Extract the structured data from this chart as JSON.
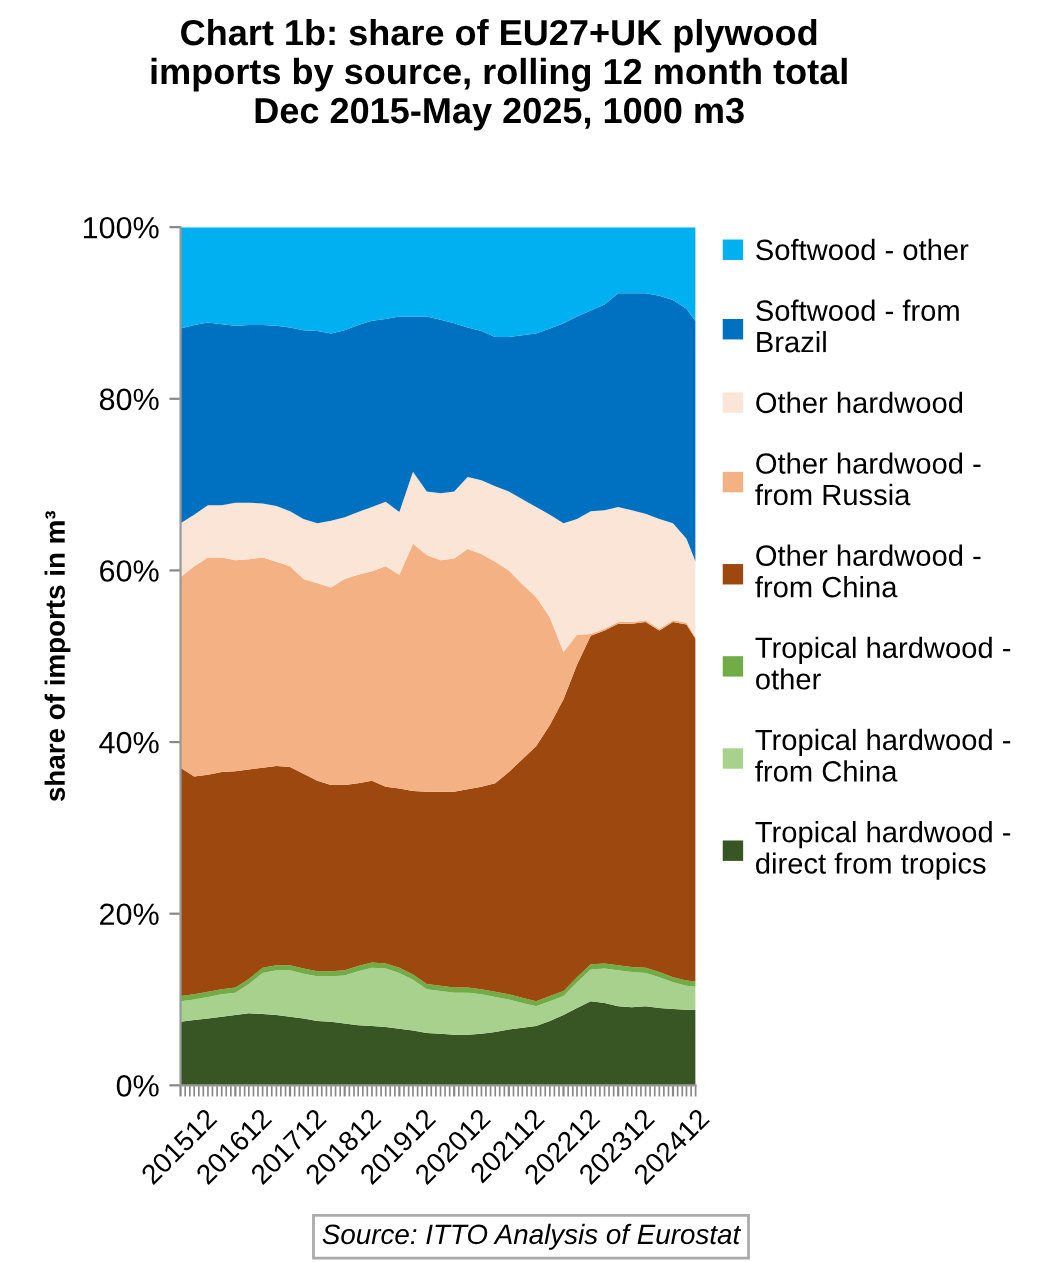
{
  "chart_data": {
    "type": "area",
    "stacked": true,
    "title": "Chart 1b: share of EU27+UK plywood\nimports by source, rolling 12 month total\nDec 2015-May 2025, 1000 m3",
    "ylabel": "share of imports in m³",
    "annotations": [
      "Source: ITTO Analysis of Eurostat"
    ],
    "x": [
      "2015-12",
      "2016-03",
      "2016-06",
      "2016-09",
      "2016-12",
      "2017-03",
      "2017-06",
      "2017-09",
      "2017-12",
      "2018-03",
      "2018-06",
      "2018-09",
      "2018-12",
      "2019-03",
      "2019-06",
      "2019-09",
      "2019-12",
      "2020-03",
      "2020-06",
      "2020-09",
      "2020-12",
      "2021-03",
      "2021-06",
      "2021-09",
      "2021-12",
      "2022-03",
      "2022-06",
      "2022-09",
      "2022-12",
      "2023-03",
      "2023-06",
      "2023-09",
      "2023-12",
      "2024-03",
      "2024-06",
      "2024-09",
      "2024-12",
      "2025-03",
      "2025-05"
    ],
    "series": [
      {
        "name": "Tropical hardwood - direct from tropics",
        "color": "#375623",
        "values": [
          7.4,
          7.6,
          7.8,
          8.0,
          8.2,
          8.4,
          8.3,
          8.2,
          8.0,
          7.8,
          7.5,
          7.4,
          7.2,
          7.0,
          6.9,
          6.8,
          6.6,
          6.4,
          6.1,
          6.0,
          5.9,
          5.9,
          6.0,
          6.2,
          6.5,
          6.7,
          6.9,
          7.5,
          8.2,
          9.0,
          9.8,
          9.6,
          9.2,
          9.1,
          9.2,
          9.0,
          8.9,
          8.8,
          8.8
        ]
      },
      {
        "name": "Tropical hardwood - from China",
        "color": "#a9d18e",
        "values": [
          2.4,
          2.4,
          2.5,
          2.6,
          2.6,
          3.4,
          4.8,
          5.2,
          5.4,
          5.2,
          5.2,
          5.3,
          5.6,
          6.3,
          6.8,
          6.8,
          6.5,
          5.9,
          5.1,
          5.0,
          4.9,
          4.9,
          4.6,
          4.1,
          3.5,
          2.9,
          2.3,
          2.3,
          2.2,
          3.0,
          3.7,
          4.0,
          4.2,
          4.1,
          3.9,
          3.6,
          3.1,
          2.8,
          2.7
        ]
      },
      {
        "name": "Tropical hardwood - other",
        "color": "#70ad47",
        "values": [
          0.6,
          0.6,
          0.6,
          0.6,
          0.6,
          0.6,
          0.6,
          0.6,
          0.6,
          0.6,
          0.6,
          0.6,
          0.6,
          0.6,
          0.6,
          0.6,
          0.6,
          0.6,
          0.6,
          0.6,
          0.6,
          0.6,
          0.6,
          0.6,
          0.6,
          0.6,
          0.6,
          0.6,
          0.6,
          0.6,
          0.6,
          0.6,
          0.6,
          0.6,
          0.6,
          0.6,
          0.6,
          0.6,
          0.6
        ]
      },
      {
        "name": "Other hardwood - from China",
        "color": "#9c480e",
        "values": [
          26.6,
          25.4,
          25.3,
          25.3,
          25.2,
          24.4,
          23.3,
          23.2,
          23.1,
          22.7,
          22.2,
          21.7,
          21.6,
          21.3,
          21.2,
          20.6,
          20.9,
          21.4,
          22.4,
          22.6,
          22.8,
          23.1,
          23.6,
          24.3,
          25.9,
          27.8,
          29.7,
          31.6,
          34.0,
          36.4,
          38.3,
          38.8,
          39.8,
          40.0,
          40.3,
          39.8,
          41.4,
          41.5,
          39.9
        ]
      },
      {
        "name": "Other hardwood - from Russia",
        "color": "#f4b183",
        "values": [
          22.2,
          24.5,
          25.3,
          25.0,
          24.6,
          24.5,
          24.5,
          23.8,
          23.4,
          22.7,
          23.0,
          23.0,
          24.0,
          24.3,
          24.4,
          25.7,
          24.9,
          28.8,
          27.6,
          27.0,
          27.2,
          28.0,
          27.1,
          25.8,
          23.5,
          20.4,
          17.4,
          12.5,
          5.5,
          3.5,
          0.2,
          0.2,
          0.2,
          0.2,
          0.2,
          0.2,
          0.2,
          0.2,
          0.2
        ]
      },
      {
        "name": "Other hardwood",
        "color": "#fbe5d6",
        "values": [
          6.3,
          6.0,
          6.1,
          6.1,
          6.7,
          6.6,
          6.3,
          6.5,
          6.4,
          7.0,
          7.0,
          7.8,
          7.2,
          7.3,
          7.5,
          7.5,
          7.3,
          8.4,
          7.4,
          7.8,
          7.8,
          8.4,
          8.6,
          8.8,
          9.2,
          9.9,
          10.5,
          12.0,
          15.0,
          13.5,
          14.3,
          13.8,
          13.4,
          13.0,
          12.4,
          12.8,
          11.3,
          9.8,
          8.8
        ]
      },
      {
        "name": "Softwood - from Brazil",
        "color": "#0070c0",
        "values": [
          22.7,
          22.1,
          21.3,
          21.1,
          20.6,
          20.7,
          20.8,
          21.0,
          21.4,
          22.0,
          22.4,
          21.8,
          21.8,
          21.8,
          21.7,
          21.3,
          22.8,
          18.1,
          20.4,
          20.2,
          19.6,
          17.4,
          17.4,
          17.4,
          18.0,
          19.1,
          20.2,
          21.7,
          23.3,
          23.6,
          23.4,
          24.0,
          24.9,
          25.3,
          25.7,
          26.0,
          26.0,
          26.8,
          28.0
        ]
      },
      {
        "name": "Softwood - other",
        "color": "#00b0f0",
        "values": [
          11.8,
          11.4,
          11.1,
          11.3,
          11.5,
          11.4,
          11.4,
          11.5,
          11.7,
          12.0,
          12.1,
          12.4,
          12.0,
          11.4,
          10.9,
          10.7,
          10.4,
          10.4,
          10.4,
          10.8,
          11.2,
          11.7,
          12.1,
          12.8,
          12.8,
          12.6,
          12.4,
          11.8,
          11.2,
          10.4,
          9.7,
          9.0,
          7.7,
          7.7,
          7.7,
          8.0,
          8.5,
          9.5,
          11.0
        ]
      }
    ],
    "xlim": [
      "2015-12",
      "2025-05"
    ],
    "xticks": [
      {
        "value": "2015-12",
        "label": "201512"
      },
      {
        "value": "2016-12",
        "label": "201612"
      },
      {
        "value": "2017-12",
        "label": "201712"
      },
      {
        "value": "2018-12",
        "label": "201812"
      },
      {
        "value": "2019-12",
        "label": "201912"
      },
      {
        "value": "2020-12",
        "label": "202012"
      },
      {
        "value": "2021-12",
        "label": "202112"
      },
      {
        "value": "2022-12",
        "label": "202212"
      },
      {
        "value": "2023-12",
        "label": "202312"
      },
      {
        "value": "2024-12",
        "label": "202412"
      }
    ],
    "ylim": [
      0,
      100
    ],
    "yticks": [
      {
        "value": 0,
        "label": "0%"
      },
      {
        "value": 20,
        "label": "20%"
      },
      {
        "value": 40,
        "label": "40%"
      },
      {
        "value": 60,
        "label": "60%"
      },
      {
        "value": 80,
        "label": "80%"
      },
      {
        "value": 100,
        "label": "100%"
      }
    ],
    "grid": false,
    "legend": "right"
  }
}
